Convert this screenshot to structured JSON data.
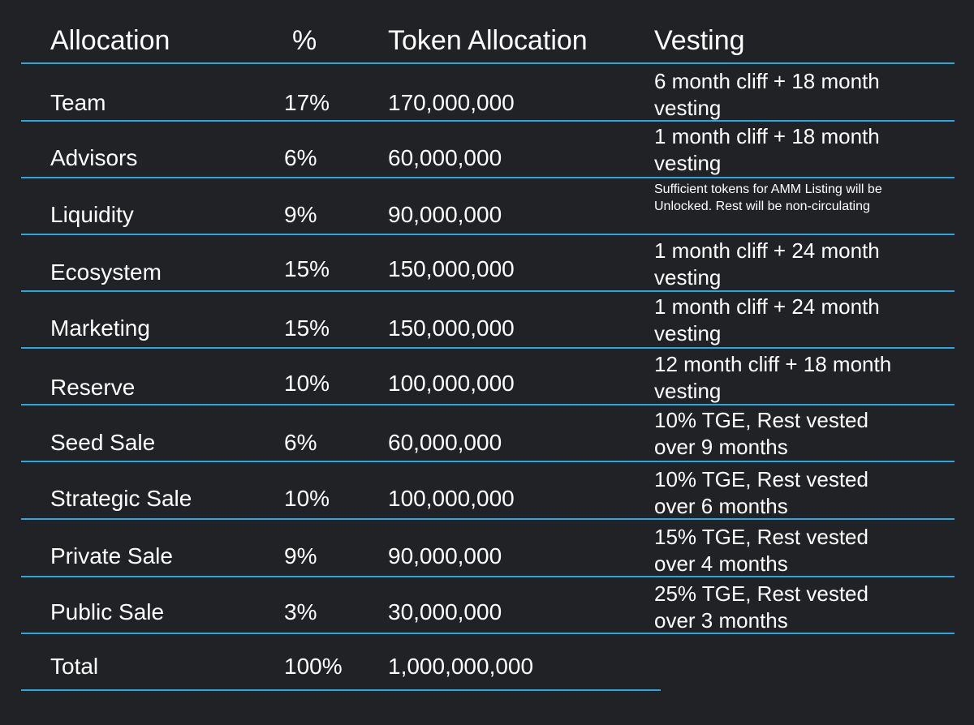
{
  "colors": {
    "background": "#212226",
    "divider": "#2aa7e0",
    "text": "#ffffff"
  },
  "header": {
    "allocation": "Allocation",
    "percent": "%",
    "token_allocation": "Token Allocation",
    "vesting": "Vesting"
  },
  "rows": [
    {
      "allocation": "Team",
      "percent": "17%",
      "tokens": "170,000,000",
      "vesting": "6 month cliff + 18 month vesting"
    },
    {
      "allocation": "Advisors",
      "percent": "6%",
      "tokens": "60,000,000",
      "vesting": "1 month cliff + 18 month vesting"
    },
    {
      "allocation": "Liquidity",
      "percent": "9%",
      "tokens": "90,000,000",
      "vesting": "Sufficient tokens for AMM Listing will be Unlocked. Rest will be non-circulating"
    },
    {
      "allocation": "Ecosystem",
      "percent": "15%",
      "tokens": "150,000,000",
      "vesting": "1 month cliff + 24 month vesting"
    },
    {
      "allocation": "Marketing",
      "percent": "15%",
      "tokens": "150,000,000",
      "vesting": "1 month cliff + 24 month vesting"
    },
    {
      "allocation": "Reserve",
      "percent": "10%",
      "tokens": "100,000,000",
      "vesting": "12 month cliff + 18 month vesting"
    },
    {
      "allocation": "Seed Sale",
      "percent": "6%",
      "tokens": "60,000,000",
      "vesting": "10% TGE, Rest vested over 9 months"
    },
    {
      "allocation": "Strategic Sale",
      "percent": "10%",
      "tokens": "100,000,000",
      "vesting": "10% TGE, Rest vested over 6 months"
    },
    {
      "allocation": "Private Sale",
      "percent": "9%",
      "tokens": "90,000,000",
      "vesting": "15% TGE, Rest vested over 4 months"
    },
    {
      "allocation": "Public Sale",
      "percent": "3%",
      "tokens": "30,000,000",
      "vesting": "25% TGE, Rest vested over 3 months"
    }
  ],
  "total": {
    "allocation": "Total",
    "percent": "100%",
    "tokens": "1,000,000,000"
  }
}
